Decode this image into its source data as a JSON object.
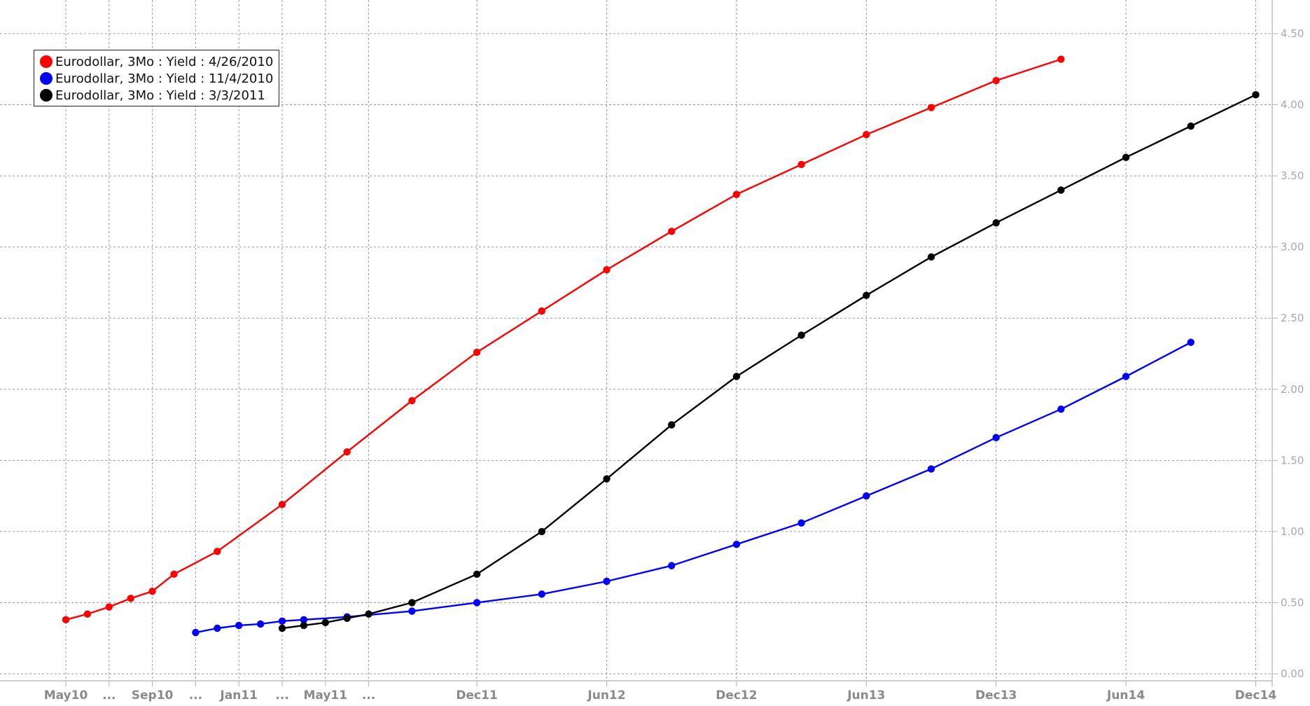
{
  "chart_data": {
    "type": "line",
    "title": "",
    "xlabel": "",
    "ylabel": "",
    "ylim": [
      0,
      4.5
    ],
    "yticks": [
      0,
      0.5,
      1,
      1.5,
      2,
      2.5,
      3,
      3.5,
      4,
      4.5
    ],
    "ytick_labels": [
      "0.00",
      "0.50",
      "1.00",
      "1.50",
      "2.00",
      "2.50",
      "3.00",
      "3.50",
      "4.00",
      "4.50"
    ],
    "xtick_labels": [
      "May10",
      "...",
      "Sep10",
      "...",
      "Jan11",
      "...",
      "May11",
      "...",
      "Dec11",
      "Jun12",
      "Dec12",
      "Jun13",
      "Dec13",
      "Jun14",
      "Dec14"
    ],
    "xtick_positions": [
      0,
      2,
      4,
      6,
      8,
      10,
      12,
      14,
      19,
      25,
      31,
      37,
      43,
      49,
      55
    ],
    "grid": true,
    "legend_position": "top-left",
    "series": [
      {
        "name": "Eurodollar, 3Mo : Yield : 4/26/2010",
        "color": "#ff0000",
        "x": [
          0,
          1,
          2,
          3,
          4,
          5,
          7,
          10,
          13,
          16,
          19,
          22,
          25,
          28,
          31,
          34,
          37,
          40,
          43,
          46
        ],
        "values": [
          0.38,
          0.42,
          0.47,
          0.53,
          0.58,
          0.7,
          0.86,
          1.19,
          1.56,
          1.92,
          2.26,
          2.55,
          2.84,
          3.11,
          3.37,
          3.58,
          3.79,
          3.98,
          4.17,
          4.32
        ]
      },
      {
        "name": "Eurodollar, 3Mo : Yield : 11/4/2010",
        "color": "#0000ff",
        "x": [
          6,
          7,
          8,
          9,
          10,
          11,
          13,
          16,
          19,
          22,
          25,
          28,
          31,
          34,
          37,
          40,
          43,
          46,
          49,
          52
        ],
        "values": [
          0.29,
          0.32,
          0.34,
          0.35,
          0.37,
          0.38,
          0.4,
          0.44,
          0.5,
          0.56,
          0.65,
          0.76,
          0.91,
          1.06,
          1.25,
          1.44,
          1.66,
          1.86,
          2.09,
          2.33
        ]
      },
      {
        "name": "Eurodollar, 3Mo : Yield : 3/3/2011",
        "color": "#000000",
        "x": [
          10,
          11,
          12,
          13,
          14,
          16,
          19,
          22,
          25,
          28,
          31,
          34,
          37,
          40,
          43,
          46,
          49,
          52,
          55
        ],
        "values": [
          0.32,
          0.34,
          0.36,
          0.39,
          0.42,
          0.5,
          0.7,
          1.0,
          1.37,
          1.75,
          2.09,
          2.38,
          2.66,
          2.93,
          3.17,
          3.4,
          3.63,
          3.85,
          4.07
        ]
      }
    ]
  }
}
